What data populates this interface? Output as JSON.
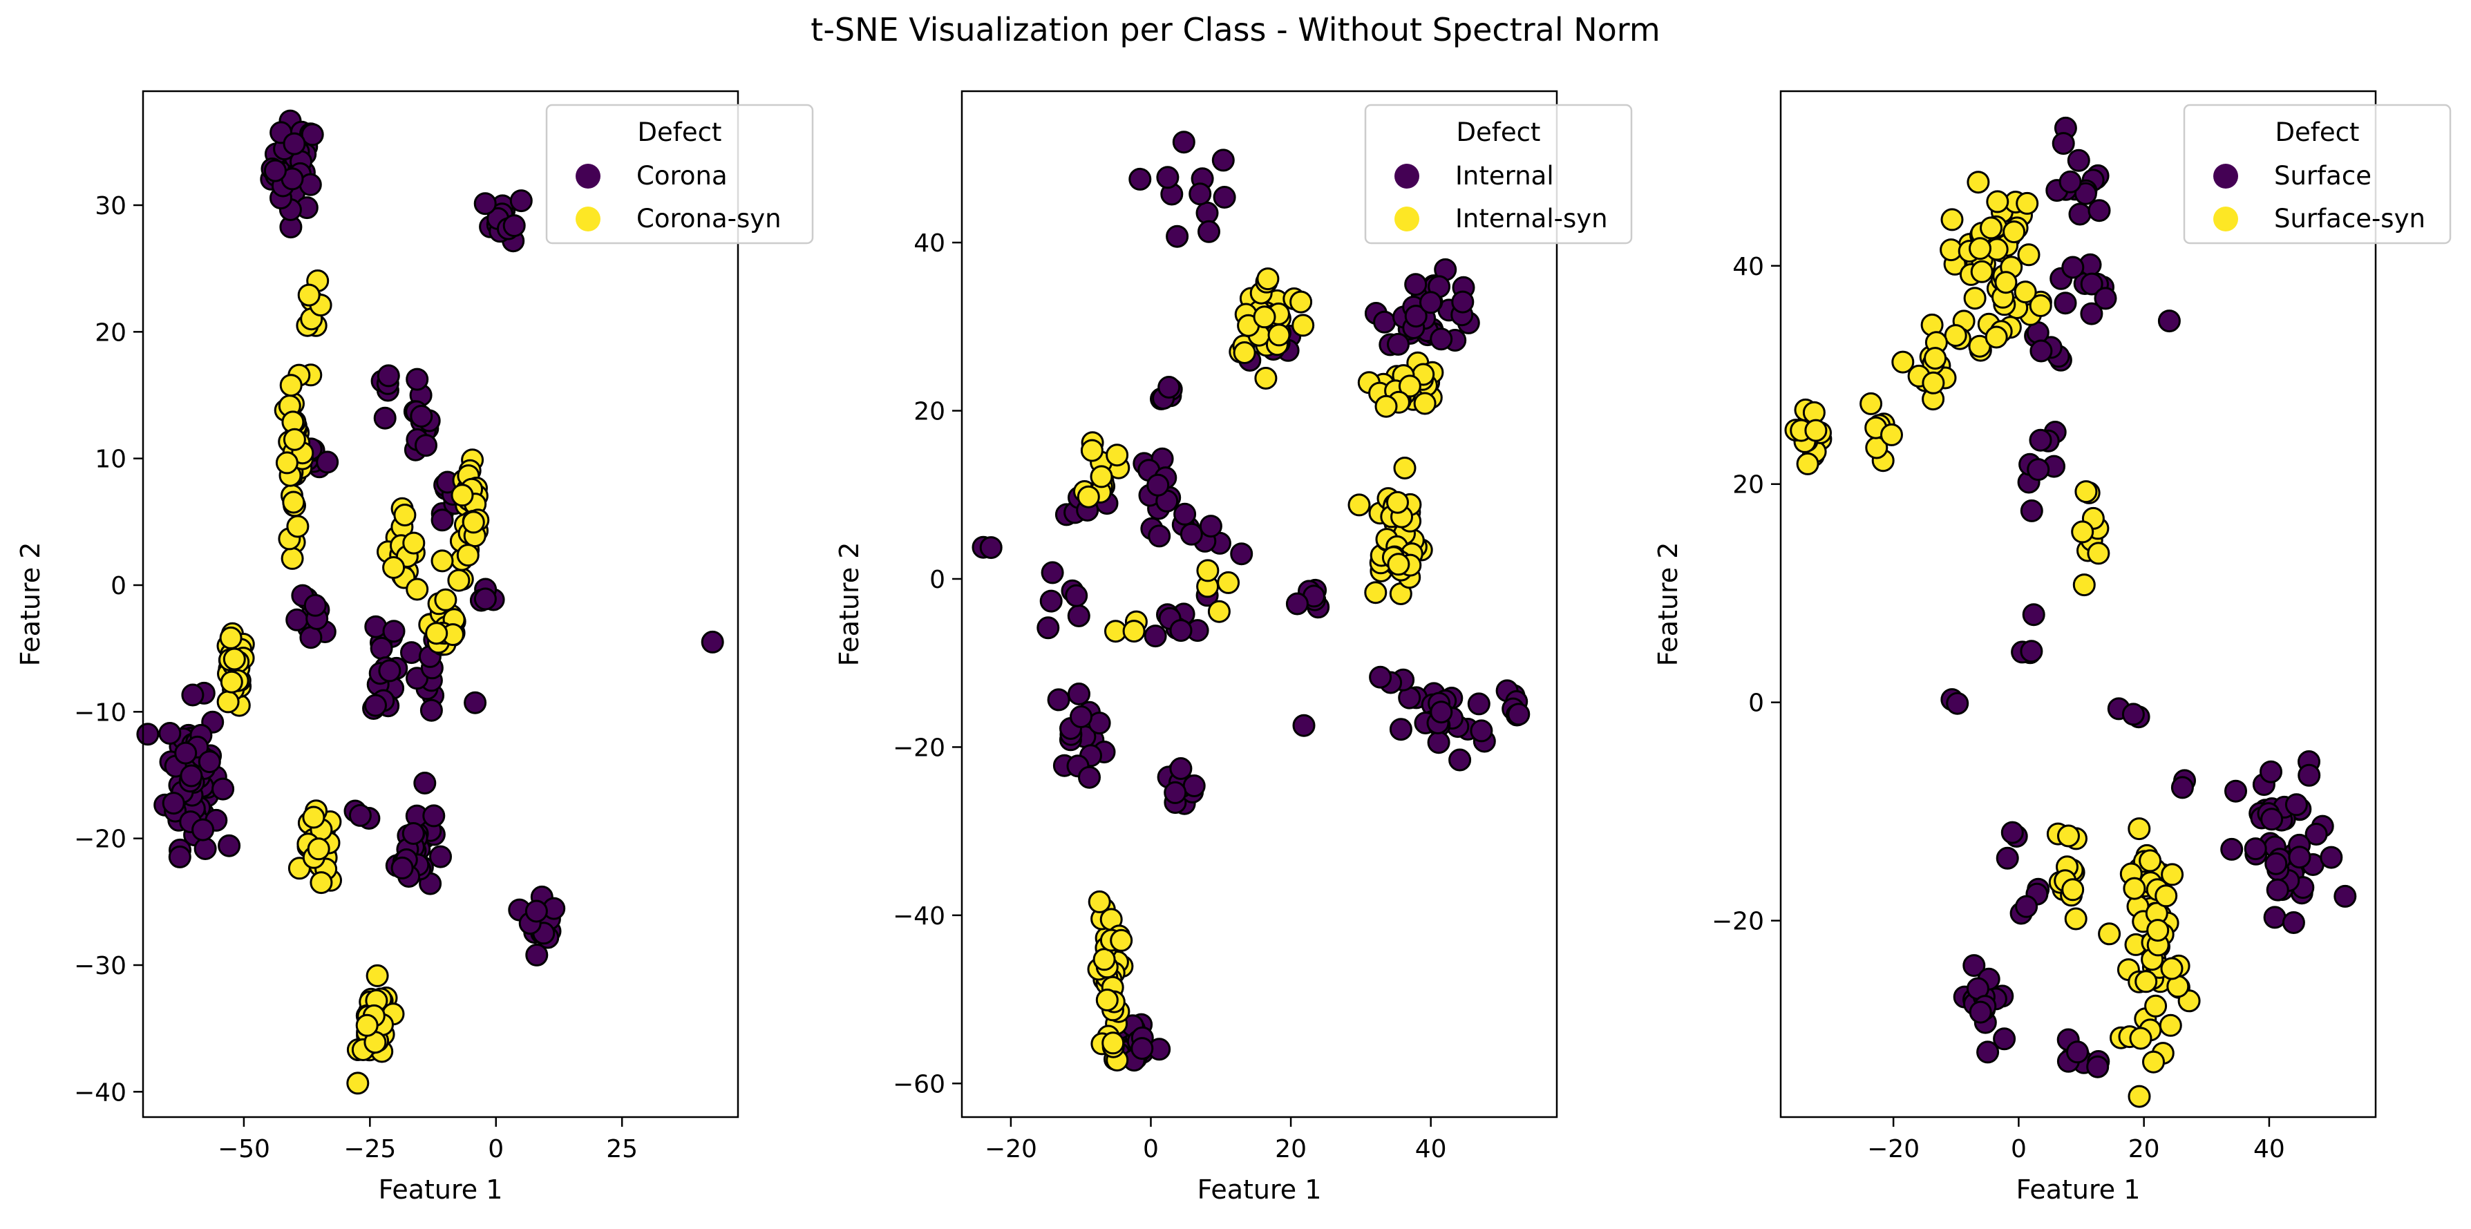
{
  "figure_title": "t-SNE Visualization per Class - Without Spectral Norm",
  "colors": {
    "real": "#440154",
    "synthetic": "#fde725",
    "edge": "#000000"
  },
  "chart_data": [
    {
      "type": "scatter",
      "xlabel": "Feature 1",
      "ylabel": "Feature 2",
      "xlim": [
        -70,
        48
      ],
      "ylim": [
        -42,
        39
      ],
      "xticks": [
        -50,
        -25,
        0,
        25
      ],
      "yticks": [
        -40,
        -30,
        -20,
        -10,
        0,
        10,
        20,
        30
      ],
      "legend": {
        "title": "Defect",
        "placement": "top-right"
      },
      "series": [
        {
          "name": "Corona",
          "color": "#440154",
          "clusters": [
            {
              "cx": -40,
              "cy": 33,
              "sx": 2.2,
              "sy": 1.8,
              "n": 45
            },
            {
              "cx": 2,
              "cy": 29,
              "sx": 2.0,
              "sy": 0.9,
              "n": 12
            },
            {
              "cx": -22,
              "cy": 15,
              "sx": 0.8,
              "sy": 1.2,
              "n": 5
            },
            {
              "cx": -15,
              "cy": 12.5,
              "sx": 1.0,
              "sy": 1.5,
              "n": 12
            },
            {
              "cx": -36,
              "cy": 10,
              "sx": 1.2,
              "sy": 0.5,
              "n": 6
            },
            {
              "cx": -10,
              "cy": 7,
              "sx": 1.5,
              "sy": 1.5,
              "n": 8
            },
            {
              "cx": -2,
              "cy": -2,
              "sx": 1.0,
              "sy": 1.0,
              "n": 4
            },
            {
              "cx": -36,
              "cy": -3,
              "sx": 2.0,
              "sy": 1.0,
              "n": 10
            },
            {
              "cx": -22,
              "cy": -6,
              "sx": 1.2,
              "sy": 2.5,
              "n": 16
            },
            {
              "cx": -14,
              "cy": -8,
              "sx": 1.2,
              "sy": 2.5,
              "n": 10
            },
            {
              "cx": -60,
              "cy": -15,
              "sx": 2.6,
              "sy": 2.8,
              "n": 80
            },
            {
              "cx": -27,
              "cy": -18,
              "sx": 1.0,
              "sy": 1.0,
              "n": 3
            },
            {
              "cx": -16,
              "cy": -21,
              "sx": 1.8,
              "sy": 1.6,
              "n": 30
            },
            {
              "cx": 9,
              "cy": -26,
              "sx": 1.5,
              "sy": 1.5,
              "n": 12
            },
            {
              "cx": -14,
              "cy": -15.2,
              "sx": 0.3,
              "sy": 0.3,
              "n": 1
            },
            {
              "cx": -4,
              "cy": -9.8,
              "sx": 0.3,
              "sy": 0.3,
              "n": 1
            },
            {
              "cx": 43,
              "cy": -4.8,
              "sx": 0.2,
              "sy": 0.2,
              "n": 1
            }
          ]
        },
        {
          "name": "Corona-syn",
          "color": "#fde725",
          "clusters": [
            {
              "cx": -36,
              "cy": 21,
              "sx": 0.7,
              "sy": 1.3,
              "n": 8
            },
            {
              "cx": -40,
              "cy": 10,
              "sx": 1.0,
              "sy": 3.0,
              "n": 35
            },
            {
              "cx": -19,
              "cy": 3,
              "sx": 1.5,
              "sy": 1.3,
              "n": 18
            },
            {
              "cx": -5,
              "cy": 5,
              "sx": 1.2,
              "sy": 2.5,
              "n": 30
            },
            {
              "cx": -10,
              "cy": -3,
              "sx": 1.5,
              "sy": 1.5,
              "n": 25
            },
            {
              "cx": -52,
              "cy": -7,
              "sx": 1.2,
              "sy": 1.5,
              "n": 30
            },
            {
              "cx": -35,
              "cy": -21,
              "sx": 1.5,
              "sy": 1.5,
              "n": 22
            },
            {
              "cx": -24,
              "cy": -35,
              "sx": 1.5,
              "sy": 1.7,
              "n": 35
            }
          ]
        }
      ]
    },
    {
      "type": "scatter",
      "xlabel": "Feature 1",
      "ylabel": "Feature 2",
      "xlim": [
        -27,
        58
      ],
      "ylim": [
        -64,
        58
      ],
      "xticks": [
        -20,
        0,
        20,
        40
      ],
      "yticks": [
        -60,
        -40,
        -20,
        0,
        20,
        40
      ],
      "legend": {
        "title": "Defect",
        "placement": "top-right"
      },
      "series": [
        {
          "name": "Internal",
          "color": "#440154",
          "clusters": [
            {
              "cx": 5,
              "cy": 52,
              "sx": 0.3,
              "sy": 0.3,
              "n": 1
            },
            {
              "cx": 7,
              "cy": 45,
              "sx": 3.0,
              "sy": 2.5,
              "n": 10
            },
            {
              "cx": 40,
              "cy": 32,
              "sx": 3.5,
              "sy": 2.0,
              "n": 35
            },
            {
              "cx": 17,
              "cy": 28,
              "sx": 2.0,
              "sy": 1.5,
              "n": 8
            },
            {
              "cx": 2,
              "cy": 22,
              "sx": 2.0,
              "sy": 0.5,
              "n": 5
            },
            {
              "cx": 1,
              "cy": 12,
              "sx": 1.5,
              "sy": 1.5,
              "n": 10
            },
            {
              "cx": 7,
              "cy": 5,
              "sx": 2.5,
              "sy": 1.2,
              "n": 10
            },
            {
              "cx": -11,
              "cy": 7,
              "sx": 1.5,
              "sy": 2.5,
              "n": 5
            },
            {
              "cx": -13,
              "cy": -3,
              "sx": 2.0,
              "sy": 2.5,
              "n": 6
            },
            {
              "cx": -10,
              "cy": -18,
              "sx": 2.0,
              "sy": 2.5,
              "n": 15
            },
            {
              "cx": -24,
              "cy": 3.5,
              "sx": 0.5,
              "sy": 0.5,
              "n": 2
            },
            {
              "cx": 3,
              "cy": -5,
              "sx": 2.5,
              "sy": 1.5,
              "n": 8
            },
            {
              "cx": 4,
              "cy": -25,
              "sx": 1.5,
              "sy": 1.5,
              "n": 12
            },
            {
              "cx": 23,
              "cy": -3,
              "sx": 1.0,
              "sy": 1.0,
              "n": 6
            },
            {
              "cx": 42,
              "cy": -17,
              "sx": 3.0,
              "sy": 2.5,
              "n": 25
            },
            {
              "cx": 52,
              "cy": -15,
              "sx": 1.0,
              "sy": 2.0,
              "n": 6
            },
            {
              "cx": 34,
              "cy": -12,
              "sx": 1.2,
              "sy": 2.5,
              "n": 3
            },
            {
              "cx": -2,
              "cy": -55,
              "sx": 1.5,
              "sy": 1.5,
              "n": 18
            },
            {
              "cx": 22,
              "cy": -17.5,
              "sx": 0.2,
              "sy": 0.2,
              "n": 1
            }
          ]
        },
        {
          "name": "Internal-syn",
          "color": "#fde725",
          "clusters": [
            {
              "cx": 17,
              "cy": 31,
              "sx": 3.0,
              "sy": 2.5,
              "n": 30
            },
            {
              "cx": 37,
              "cy": 23,
              "sx": 2.0,
              "sy": 1.5,
              "n": 30
            },
            {
              "cx": -7,
              "cy": 13,
              "sx": 1.0,
              "sy": 2.2,
              "n": 12
            },
            {
              "cx": 35,
              "cy": 5,
              "sx": 2.0,
              "sy": 3.5,
              "n": 40
            },
            {
              "cx": 8,
              "cy": -1,
              "sx": 1.5,
              "sy": 1.5,
              "n": 4
            },
            {
              "cx": -4,
              "cy": -6,
              "sx": 1.2,
              "sy": 0.5,
              "n": 3
            },
            {
              "cx": -6,
              "cy": -48,
              "sx": 0.8,
              "sy": 5.0,
              "n": 35
            }
          ]
        }
      ]
    },
    {
      "type": "scatter",
      "xlabel": "Feature 1",
      "ylabel": "Feature 2",
      "xlim": [
        -38,
        57
      ],
      "ylim": [
        -38,
        56
      ],
      "xticks": [
        -20,
        0,
        20,
        40
      ],
      "yticks": [
        -20,
        0,
        20,
        40
      ],
      "legend": {
        "title": "Defect",
        "placement": "top-right"
      },
      "series": [
        {
          "name": "Surface",
          "color": "#440154",
          "clusters": [
            {
              "cx": 10,
              "cy": 47,
              "sx": 2.0,
              "sy": 1.5,
              "n": 12
            },
            {
              "cx": 10,
              "cy": 38,
              "sx": 2.0,
              "sy": 1.5,
              "n": 10
            },
            {
              "cx": 5,
              "cy": 33,
              "sx": 1.2,
              "sy": 1.5,
              "n": 6
            },
            {
              "cx": 3,
              "cy": 22,
              "sx": 2.0,
              "sy": 2.0,
              "n": 8
            },
            {
              "cx": 1,
              "cy": 5,
              "sx": 1.0,
              "sy": 1.5,
              "n": 4
            },
            {
              "cx": -10,
              "cy": 0,
              "sx": 0.3,
              "sy": 0.6,
              "n": 2
            },
            {
              "cx": 18,
              "cy": -1,
              "sx": 1.0,
              "sy": 0.3,
              "n": 3
            },
            {
              "cx": 43,
              "cy": -14,
              "sx": 4.0,
              "sy": 4.0,
              "n": 45
            },
            {
              "cx": 26,
              "cy": -8,
              "sx": 0.5,
              "sy": 0.5,
              "n": 2
            },
            {
              "cx": -5,
              "cy": -28,
              "sx": 2.5,
              "sy": 2.5,
              "n": 15
            },
            {
              "cx": 10,
              "cy": -32,
              "sx": 2.0,
              "sy": 1.0,
              "n": 8
            },
            {
              "cx": 2,
              "cy": -18,
              "sx": 1.0,
              "sy": 1.5,
              "n": 4
            },
            {
              "cx": 0,
              "cy": -13,
              "sx": 0.8,
              "sy": 1.0,
              "n": 3
            },
            {
              "cx": 24,
              "cy": 35,
              "sx": 0.2,
              "sy": 0.2,
              "n": 1
            },
            {
              "cx": 7,
              "cy": 52,
              "sx": 0.3,
              "sy": 0.3,
              "n": 2
            }
          ]
        },
        {
          "name": "Surface-syn",
          "color": "#fde725",
          "clusters": [
            {
              "cx": -4,
              "cy": 40,
              "sx": 3.5,
              "sy": 3.5,
              "n": 50
            },
            {
              "cx": -14,
              "cy": 30,
              "sx": 1.5,
              "sy": 3.0,
              "n": 15
            },
            {
              "cx": -33,
              "cy": 25,
              "sx": 1.5,
              "sy": 1.0,
              "n": 20
            },
            {
              "cx": -22,
              "cy": 24,
              "sx": 1.0,
              "sy": 1.5,
              "n": 8
            },
            {
              "cx": 11,
              "cy": 16,
              "sx": 1.0,
              "sy": 2.0,
              "n": 10
            },
            {
              "cx": 8,
              "cy": -16,
              "sx": 1.0,
              "sy": 2.5,
              "n": 12
            },
            {
              "cx": 22,
              "cy": -22,
              "sx": 2.0,
              "sy": 5.0,
              "n": 60
            }
          ]
        }
      ]
    }
  ]
}
